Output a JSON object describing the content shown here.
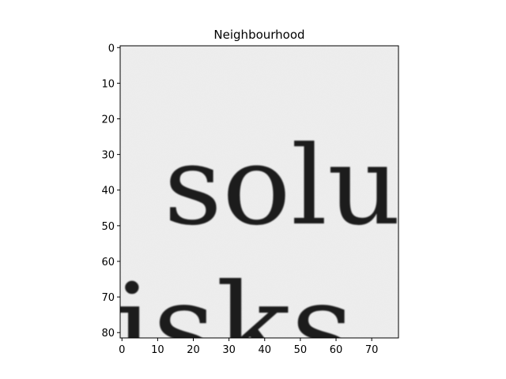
{
  "chart_data": {
    "type": "heatmap",
    "title": "Neighbourhood",
    "colormap": "gray",
    "xlim": [
      -0.5,
      77.5
    ],
    "ylim": [
      81.5,
      -0.5
    ],
    "xticks": [
      0,
      10,
      20,
      30,
      40,
      50,
      60,
      70
    ],
    "yticks": [
      0,
      10,
      20,
      30,
      40,
      50,
      60,
      70,
      80
    ],
    "image_text": [
      "solu",
      "isks"
    ],
    "background_color": "#eeeeee",
    "ink_color": "#1b1b1b"
  }
}
